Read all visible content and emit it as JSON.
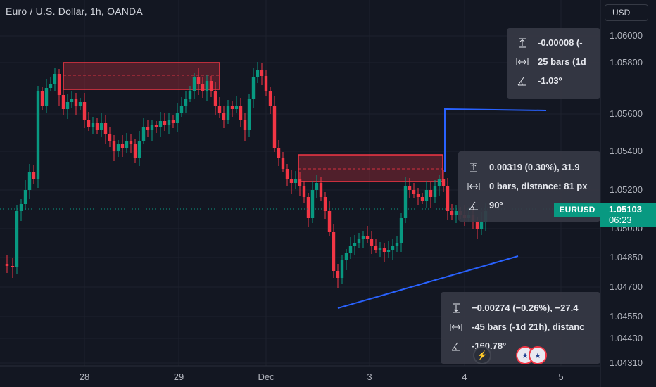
{
  "header": {
    "symbol_title": "Euro / U.S. Dollar, 1h, OANDA",
    "currency_label": "USD"
  },
  "price_axis": {
    "labels": [
      "1.06000",
      "1.05800",
      "1.05600",
      "1.05400",
      "1.05200",
      "1.05000",
      "1.04850",
      "1.04700",
      "1.04550",
      "1.04430",
      "1.04310"
    ]
  },
  "time_axis": {
    "labels": [
      "28",
      "29",
      "Dec",
      "3",
      "4",
      "5"
    ]
  },
  "last_price": {
    "symbol": "EURUSD",
    "price": "1.05103",
    "countdown": "06:23",
    "color": "#089981"
  },
  "tooltips": [
    {
      "price": "-0.00008 (-",
      "bars": "25 bars (1d",
      "angle": "-1.03º"
    },
    {
      "price": "0.00319 (0.30%), 31.9",
      "bars": "0 bars, distance: 81 px",
      "angle": "90º"
    },
    {
      "price": "−0.00274 (−0.26%), −27.4",
      "bars": "-45 bars (-1d 21h), distanc",
      "angle": "-160.78º"
    }
  ],
  "colors": {
    "background": "#131722",
    "bull": "#089981",
    "bear": "#f23645",
    "trendline": "#2962ff",
    "zone_border": "#f23645"
  },
  "icons": [
    "price-range-icon",
    "bars-range-icon",
    "angle-icon",
    "lightning-icon",
    "us-flag-icon"
  ]
}
